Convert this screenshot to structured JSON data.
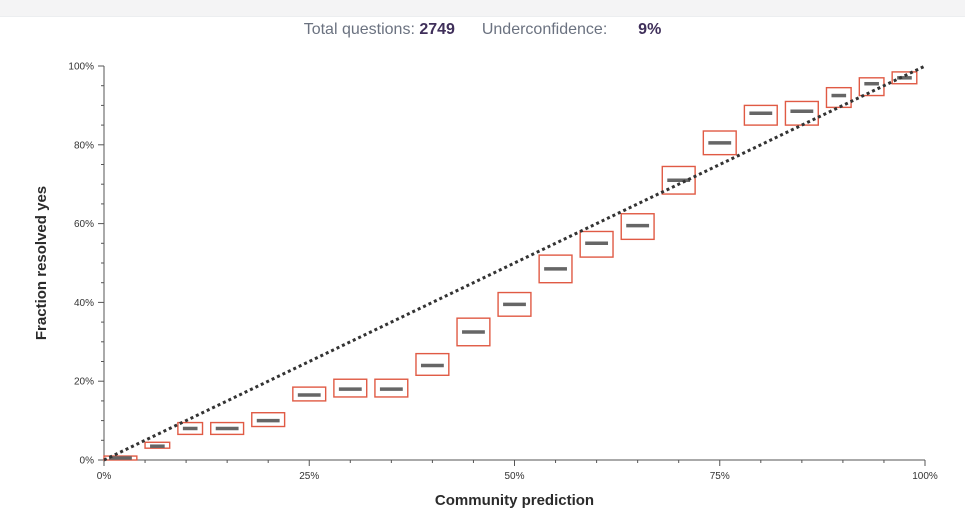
{
  "header": {
    "total_label": "Total questions:",
    "total_value": "2749",
    "bias_label": "Underconfidence:",
    "bias_value": "9%"
  },
  "colors": {
    "box_stroke": "#e05a44",
    "median_bar": "#666666",
    "diagonal": "#333333",
    "axis": "#555555"
  },
  "chart_data": {
    "type": "box",
    "title": "",
    "xlabel": "Community prediction",
    "ylabel": "Fraction resolved yes",
    "xlim": [
      0,
      100
    ],
    "ylim": [
      0,
      100
    ],
    "x_ticks": [
      "0%",
      "25%",
      "50%",
      "75%",
      "100%"
    ],
    "y_ticks": [
      "0%",
      "20%",
      "40%",
      "60%",
      "80%",
      "100%"
    ],
    "reference_line": "y = x",
    "bins": [
      {
        "x_from": 0,
        "x_to": 4,
        "low": 0,
        "mid": 0.5,
        "high": 1
      },
      {
        "x_from": 5,
        "x_to": 8,
        "low": 3,
        "mid": 3.5,
        "high": 4.5
      },
      {
        "x_from": 9,
        "x_to": 12,
        "low": 6.5,
        "mid": 8,
        "high": 9.5
      },
      {
        "x_from": 13,
        "x_to": 17,
        "low": 6.5,
        "mid": 8,
        "high": 9.5
      },
      {
        "x_from": 18,
        "x_to": 22,
        "low": 8.5,
        "mid": 10,
        "high": 12
      },
      {
        "x_from": 23,
        "x_to": 27,
        "low": 15,
        "mid": 16.5,
        "high": 18.5
      },
      {
        "x_from": 28,
        "x_to": 32,
        "low": 16,
        "mid": 18,
        "high": 20.5
      },
      {
        "x_from": 33,
        "x_to": 37,
        "low": 16,
        "mid": 18,
        "high": 20.5
      },
      {
        "x_from": 38,
        "x_to": 42,
        "low": 21.5,
        "mid": 24,
        "high": 27
      },
      {
        "x_from": 43,
        "x_to": 47,
        "low": 29,
        "mid": 32.5,
        "high": 36
      },
      {
        "x_from": 48,
        "x_to": 52,
        "low": 36.5,
        "mid": 39.5,
        "high": 42.5
      },
      {
        "x_from": 53,
        "x_to": 57,
        "low": 45,
        "mid": 48.5,
        "high": 52
      },
      {
        "x_from": 58,
        "x_to": 62,
        "low": 51.5,
        "mid": 55,
        "high": 58
      },
      {
        "x_from": 63,
        "x_to": 67,
        "low": 56,
        "mid": 59.5,
        "high": 62.5
      },
      {
        "x_from": 68,
        "x_to": 72,
        "low": 67.5,
        "mid": 71,
        "high": 74.5
      },
      {
        "x_from": 73,
        "x_to": 77,
        "low": 77.5,
        "mid": 80.5,
        "high": 83.5
      },
      {
        "x_from": 78,
        "x_to": 82,
        "low": 85,
        "mid": 88,
        "high": 90
      },
      {
        "x_from": 83,
        "x_to": 87,
        "low": 85,
        "mid": 88.5,
        "high": 91
      },
      {
        "x_from": 88,
        "x_to": 91,
        "low": 89.5,
        "mid": 92.5,
        "high": 94.5
      },
      {
        "x_from": 92,
        "x_to": 95,
        "low": 92.5,
        "mid": 95.5,
        "high": 97
      },
      {
        "x_from": 96,
        "x_to": 99,
        "low": 95.5,
        "mid": 97,
        "high": 98.5
      }
    ]
  }
}
